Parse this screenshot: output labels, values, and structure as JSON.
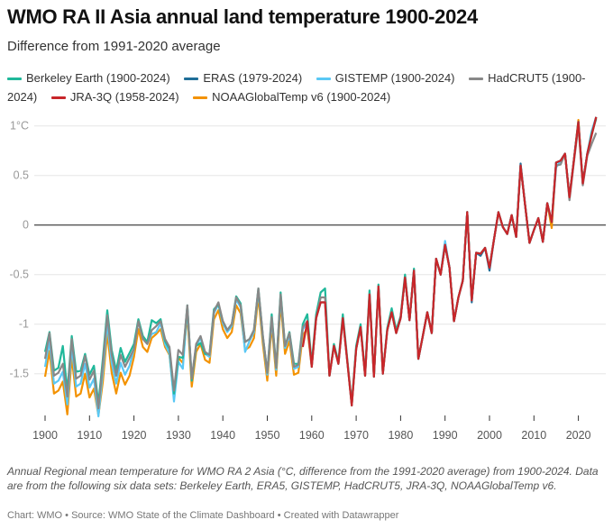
{
  "title": "WMO RA II Asia annual land temperature 1900-2024",
  "subtitle": "Difference from 1991-2020 average",
  "notes": "Annual Regional mean temperature for WMO RA 2 Asia (°C, difference from the 1991-2020 average) from 1900-2024. Data are from the following six data sets: Berkeley Earth, ERA5, GISTEMP, HadCRUT5, JRA-3Q, NOAAGlobalTemp v6.",
  "footer": "Chart: WMO • Source: WMO State of the Climate Dashboard • Created with Datawrapper",
  "chart_data": {
    "type": "line",
    "xlim": [
      1900,
      2024
    ],
    "ylim": [
      -1.96,
      1.1
    ],
    "x_ticks": [
      "1900",
      "1910",
      "1920",
      "1930",
      "1940",
      "1950",
      "1960",
      "1970",
      "1980",
      "1990",
      "2000",
      "2010",
      "2020"
    ],
    "y_ticks": [
      {
        "value": 1,
        "label": "1°C"
      },
      {
        "value": 0.5,
        "label": "0.5"
      },
      {
        "value": 0,
        "label": "0"
      },
      {
        "value": -0.5,
        "label": "-0.5"
      },
      {
        "value": -1,
        "label": "-1"
      },
      {
        "value": -1.5,
        "label": "-1.5"
      }
    ],
    "grid": true,
    "legend_position": "top",
    "series": [
      {
        "name": "NOAAGlobalTemp v6 (1900-2024)",
        "color": "#f39200",
        "start_year": 1900,
        "values": [
          -1.53,
          -1.27,
          -1.7,
          -1.67,
          -1.58,
          -1.91,
          -1.33,
          -1.73,
          -1.7,
          -1.5,
          -1.74,
          -1.65,
          -1.92,
          -1.58,
          -1.09,
          -1.49,
          -1.7,
          -1.49,
          -1.61,
          -1.52,
          -1.33,
          -1.05,
          -1.23,
          -1.28,
          -1.14,
          -1.1,
          -1.05,
          -1.23,
          -1.31,
          -1.75,
          -1.34,
          -1.39,
          -0.89,
          -1.63,
          -1.28,
          -1.2,
          -1.36,
          -1.39,
          -0.95,
          -0.86,
          -1.05,
          -1.14,
          -1.08,
          -0.81,
          -0.89,
          -1.26,
          -1.23,
          -1.14,
          -0.72,
          -1.2,
          -1.57,
          -1.01,
          -1.52,
          -0.78,
          -1.3,
          -1.17,
          -1.51,
          -1.49,
          -1.11,
          -1.05,
          -1.43,
          -0.94,
          -0.78,
          -0.78,
          -1.52,
          -1.22,
          -1.4,
          -0.94,
          -1.37,
          -1.82,
          -1.25,
          -1.03,
          -1.52,
          -0.7,
          -1.53,
          -0.62,
          -1.5,
          -1.06,
          -0.88,
          -1.09,
          -0.94,
          -0.53,
          -0.96,
          -0.46,
          -1.35,
          -1.12,
          -0.88,
          -1.09,
          -0.34,
          -0.5,
          -0.2,
          -0.43,
          -0.97,
          -0.73,
          -0.56,
          0.13,
          -0.76,
          -0.28,
          -0.29,
          -0.23,
          -0.43,
          -0.15,
          0.13,
          -0.02,
          -0.09,
          0.1,
          -0.12,
          0.6,
          0.21,
          -0.18,
          -0.05,
          0.07,
          -0.17,
          0.22,
          -0.03,
          0.63,
          0.65,
          0.72,
          0.28,
          0.66,
          1.06,
          0.42,
          0.72,
          0.91,
          1.08
        ]
      },
      {
        "name": "GISTEMP (1900-2024)",
        "color": "#5ac8f5",
        "start_year": 1900,
        "values": [
          -1.43,
          -1.17,
          -1.6,
          -1.57,
          -1.48,
          -1.81,
          -1.23,
          -1.63,
          -1.6,
          -1.4,
          -1.64,
          -1.55,
          -1.93,
          -1.48,
          -0.99,
          -1.39,
          -1.6,
          -1.39,
          -1.51,
          -1.42,
          -1.25,
          -0.97,
          -1.15,
          -1.2,
          -1.1,
          -1.08,
          -0.99,
          -1.2,
          -1.3,
          -1.78,
          -1.38,
          -1.45,
          -0.83,
          -1.55,
          -1.22,
          -1.14,
          -1.3,
          -1.33,
          -0.89,
          -0.8,
          -0.99,
          -1.08,
          -1.02,
          -0.75,
          -0.83,
          -1.28,
          -1.17,
          -1.08,
          -0.66,
          -1.14,
          -1.51,
          -0.95,
          -1.46,
          -0.72,
          -1.24,
          -1.11,
          -1.45,
          -1.43,
          -1.05,
          -0.99,
          -1.43,
          -0.94,
          -0.78,
          -0.78,
          -1.52,
          -1.22,
          -1.4,
          -0.94,
          -1.37,
          -1.82,
          -1.25,
          -1.03,
          -1.52,
          -0.7,
          -1.53,
          -0.62,
          -1.5,
          -1.06,
          -0.88,
          -1.09,
          -0.94,
          -0.53,
          -0.96,
          -0.46,
          -1.35,
          -1.12,
          -0.88,
          -1.09,
          -0.34,
          -0.5,
          -0.16,
          -0.43,
          -0.97,
          -0.73,
          -0.56,
          0.13,
          -0.76,
          -0.28,
          -0.29,
          -0.23,
          -0.43,
          -0.15,
          0.13,
          -0.02,
          -0.09,
          0.1,
          -0.12,
          0.6,
          0.21,
          -0.18,
          -0.05,
          0.07,
          -0.17,
          0.22,
          0.03,
          0.58,
          0.65,
          0.72,
          0.28,
          0.66,
          1.04,
          0.42,
          0.72,
          0.95,
          1.09
        ]
      },
      {
        "name": "Berkeley Earth (1900-2024)",
        "color": "#1fb89a",
        "start_year": 1900,
        "values": [
          -1.28,
          -1.08,
          -1.47,
          -1.44,
          -1.22,
          -1.68,
          -1.12,
          -1.48,
          -1.47,
          -1.3,
          -1.51,
          -1.42,
          -1.8,
          -1.35,
          -0.86,
          -1.26,
          -1.47,
          -1.24,
          -1.38,
          -1.29,
          -1.2,
          -0.95,
          -1.12,
          -1.18,
          -0.96,
          -0.99,
          -0.95,
          -1.17,
          -1.25,
          -1.7,
          -1.33,
          -1.34,
          -0.81,
          -1.57,
          -1.22,
          -1.19,
          -1.3,
          -1.3,
          -0.85,
          -0.8,
          -0.97,
          -1.06,
          -1.0,
          -0.72,
          -0.79,
          -1.18,
          -1.15,
          -1.06,
          -0.64,
          -1.12,
          -1.49,
          -0.9,
          -1.44,
          -0.68,
          -1.22,
          -1.08,
          -1.4,
          -1.4,
          -1.0,
          -0.9,
          -1.4,
          -0.9,
          -0.68,
          -0.64,
          -1.52,
          -1.2,
          -1.38,
          -0.9,
          -1.35,
          -1.8,
          -1.22,
          -1.0,
          -1.5,
          -0.66,
          -1.53,
          -0.6,
          -1.5,
          -1.04,
          -0.84,
          -1.06,
          -0.92,
          -0.5,
          -0.96,
          -0.44,
          -1.35,
          -1.12,
          -0.88,
          -1.09,
          -0.34,
          -0.5,
          -0.2,
          -0.43,
          -0.97,
          -0.73,
          -0.56,
          0.13,
          -0.76,
          -0.28,
          -0.29,
          -0.23,
          -0.43,
          -0.15,
          0.13,
          -0.02,
          -0.09,
          0.1,
          -0.12,
          0.6,
          0.21,
          -0.18,
          -0.05,
          0.07,
          -0.17,
          0.22,
          0.03,
          0.63,
          0.65,
          0.72,
          0.28,
          0.66,
          1.04,
          0.42,
          0.72,
          0.93,
          1.07
        ]
      },
      {
        "name": "ERAS (1979-2024)",
        "color": "#1f6e98",
        "start_year": 1979,
        "values": [
          -1.09,
          -0.94,
          -0.53,
          -0.96,
          -0.46,
          -1.35,
          -1.12,
          -0.88,
          -1.09,
          -0.34,
          -0.5,
          -0.2,
          -0.43,
          -0.97,
          -0.73,
          -0.56,
          0.13,
          -0.78,
          -0.28,
          -0.31,
          -0.23,
          -0.46,
          -0.15,
          0.13,
          -0.02,
          -0.09,
          0.1,
          -0.12,
          0.62,
          0.21,
          -0.18,
          -0.05,
          0.07,
          -0.17,
          0.22,
          0.03,
          0.63,
          0.65,
          0.72,
          0.28,
          0.66,
          1.04,
          0.42,
          0.72,
          0.91,
          1.09
        ]
      },
      {
        "name": "HadCRUT5 (1900-2024)",
        "color": "#888888",
        "start_year": 1900,
        "values": [
          -1.35,
          -1.09,
          -1.52,
          -1.49,
          -1.4,
          -1.73,
          -1.15,
          -1.55,
          -1.52,
          -1.32,
          -1.56,
          -1.47,
          -1.85,
          -1.4,
          -0.91,
          -1.31,
          -1.52,
          -1.31,
          -1.43,
          -1.34,
          -1.25,
          -0.97,
          -1.15,
          -1.2,
          -1.06,
          -1.02,
          -0.97,
          -1.15,
          -1.23,
          -1.67,
          -1.26,
          -1.31,
          -0.81,
          -1.55,
          -1.2,
          -1.12,
          -1.28,
          -1.31,
          -0.87,
          -0.78,
          -0.97,
          -1.06,
          -1.0,
          -0.73,
          -0.81,
          -1.18,
          -1.15,
          -1.06,
          -0.64,
          -1.12,
          -1.49,
          -0.93,
          -1.44,
          -0.7,
          -1.22,
          -1.09,
          -1.43,
          -1.41,
          -1.03,
          -0.97,
          -1.43,
          -0.94,
          -0.73,
          -0.73,
          -1.52,
          -1.22,
          -1.4,
          -0.94,
          -1.37,
          -1.82,
          -1.25,
          -1.03,
          -1.52,
          -0.7,
          -1.53,
          -0.62,
          -1.5,
          -1.06,
          -0.88,
          -1.09,
          -0.94,
          -0.53,
          -0.96,
          -0.46,
          -1.35,
          -1.12,
          -0.88,
          -1.09,
          -0.34,
          -0.5,
          -0.2,
          -0.43,
          -0.97,
          -0.73,
          -0.56,
          0.13,
          -0.76,
          -0.28,
          -0.29,
          -0.23,
          -0.43,
          -0.15,
          0.13,
          -0.02,
          -0.09,
          0.1,
          -0.12,
          0.6,
          0.21,
          -0.18,
          -0.05,
          0.07,
          -0.17,
          0.22,
          0.03,
          0.6,
          0.61,
          0.72,
          0.25,
          0.64,
          1.0,
          0.4,
          0.7,
          0.82,
          0.93
        ]
      },
      {
        "name": "JRA-3Q (1958-2024)",
        "color": "#c8262a",
        "start_year": 1958,
        "values": [
          -1.23,
          -0.97,
          -1.43,
          -0.94,
          -0.78,
          -0.78,
          -1.52,
          -1.22,
          -1.4,
          -0.94,
          -1.37,
          -1.82,
          -1.25,
          -1.03,
          -1.52,
          -0.7,
          -1.53,
          -0.62,
          -1.5,
          -1.06,
          -0.88,
          -1.09,
          -0.94,
          -0.53,
          -0.96,
          -0.46,
          -1.35,
          -1.12,
          -0.88,
          -1.09,
          -0.34,
          -0.5,
          -0.2,
          -0.43,
          -0.97,
          -0.73,
          -0.56,
          0.13,
          -0.76,
          -0.28,
          -0.29,
          -0.23,
          -0.43,
          -0.15,
          0.13,
          -0.02,
          -0.09,
          0.1,
          -0.12,
          0.6,
          0.21,
          -0.18,
          -0.05,
          0.07,
          -0.17,
          0.22,
          0.03,
          0.63,
          0.65,
          0.72,
          0.28,
          0.66,
          1.04,
          0.42,
          0.72,
          0.91,
          1.09
        ]
      }
    ]
  }
}
